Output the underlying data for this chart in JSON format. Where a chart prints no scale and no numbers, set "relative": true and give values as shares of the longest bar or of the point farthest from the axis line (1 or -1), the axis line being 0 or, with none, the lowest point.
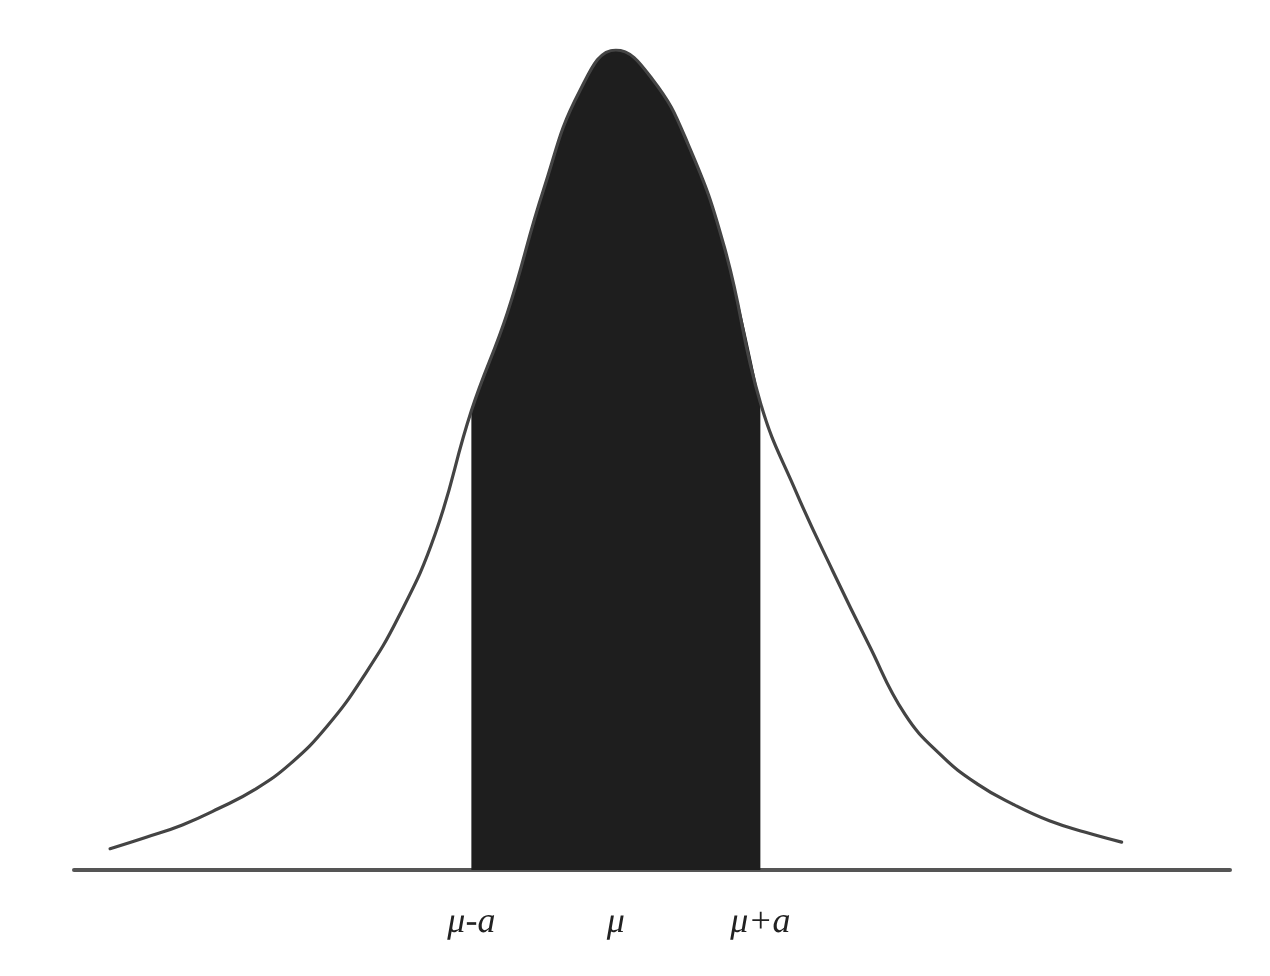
{
  "chart_data": {
    "type": "line",
    "relative": true,
    "tick_labels": "x",
    "categories": [
      null,
      null,
      null,
      null,
      null,
      null,
      null,
      null,
      null,
      null,
      null,
      "μ-a",
      null,
      null,
      null,
      "μ",
      null,
      null,
      null,
      "μ+a",
      null,
      null,
      null,
      null,
      null,
      null,
      null,
      null,
      null,
      null,
      null,
      null,
      null
    ],
    "series": [
      {
        "color": "#444444",
        "values": [
          null,
          0.026,
          0.04,
          0.055,
          0.075,
          0.098,
          0.13,
          0.175,
          0.235,
          0.31,
          0.41,
          0.56,
          0.68,
          0.83,
          0.95,
          1,
          0.965,
          0.885,
          0.76,
          0.57,
          0.46,
          0.365,
          0.275,
          0.19,
          0.14,
          0.105,
          0.08,
          0.06,
          0.046,
          0.034,
          null,
          null,
          null
        ]
      },
      {
        "type": "area",
        "color": "#1e1e1e",
        "values": [
          null,
          null,
          null,
          null,
          null,
          null,
          null,
          null,
          null,
          null,
          null,
          0.56,
          0.68,
          0.83,
          0.95,
          1,
          0.965,
          0.885,
          0.76,
          0.57,
          null,
          null,
          null,
          null,
          null,
          null,
          null,
          null,
          null,
          null,
          null,
          null,
          null
        ]
      }
    ]
  }
}
